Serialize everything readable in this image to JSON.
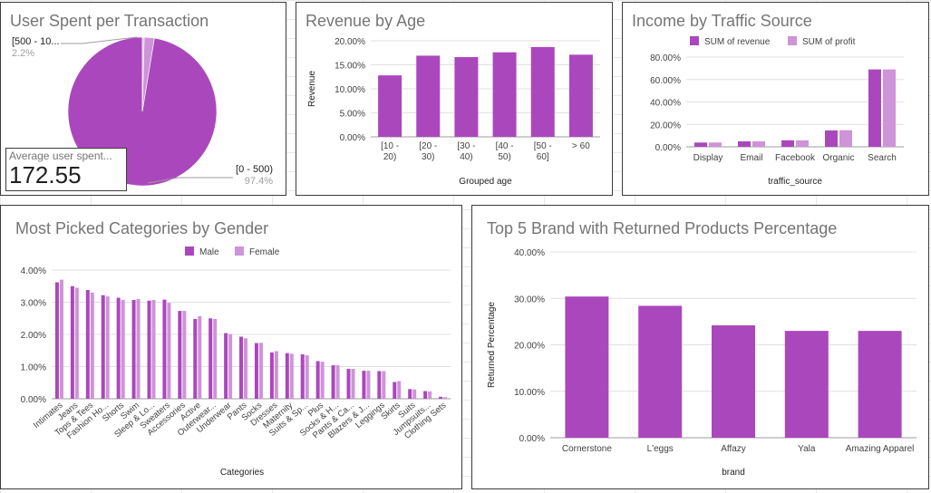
{
  "palette": {
    "primary": "#ab47bc",
    "secondary": "#ce93d8",
    "grid": "#e0e0e0",
    "text": "#424242",
    "title": "#757575"
  },
  "panels": {
    "p1_title": "User Spent per Transaction",
    "p2_title": "Revenue by Age",
    "p3_title": "Income by Traffic Source",
    "p4_title": "Most Picked Categories by Gender",
    "p5_title": "Top 5 Brand with Returned Products Percentage"
  },
  "scorecard": {
    "label": "Average user spent...",
    "value": "172.55"
  },
  "chart_data": [
    {
      "type": "pie",
      "title": "User Spent per Transaction",
      "slices": [
        {
          "label": "[0 - 500)",
          "value": 97.4,
          "pct_label": "97.4%",
          "color": "#ab47bc"
        },
        {
          "label": "[500 - 10...",
          "value": 2.2,
          "pct_label": "2.2%",
          "color": "#ce93d8"
        },
        {
          "label": "",
          "value": 0.4,
          "pct_label": "",
          "color": "#e1bee7"
        }
      ]
    },
    {
      "type": "bar",
      "title": "Revenue by Age",
      "categories": [
        [
          "[10 -",
          "20)"
        ],
        [
          "[20 -",
          "30)"
        ],
        [
          "[30 -",
          "40)"
        ],
        [
          "[40 -",
          "50)"
        ],
        [
          "[50 -",
          "60]"
        ],
        [
          "> 60"
        ]
      ],
      "values": [
        12.8,
        16.9,
        16.6,
        17.6,
        18.7,
        17.1
      ],
      "ylim": [
        0,
        20
      ],
      "yticks": [
        "0.00%",
        "5.00%",
        "10.00%",
        "15.00%",
        "20.00%"
      ],
      "xlabel": "Grouped age",
      "ylabel": "Revenue",
      "grid": true
    },
    {
      "type": "bar",
      "title": "Income by Traffic Source",
      "categories": [
        "Display",
        "Email",
        "Facebook",
        "Organic",
        "Search"
      ],
      "series": [
        {
          "name": "SUM of revenue",
          "values": [
            3.8,
            4.9,
            5.8,
            14.6,
            69.0
          ]
        },
        {
          "name": "SUM of profit",
          "values": [
            3.8,
            4.9,
            5.8,
            14.8,
            69.0
          ]
        }
      ],
      "ylim": [
        0,
        80
      ],
      "yticks": [
        "0.00%",
        "20.00%",
        "40.00%",
        "60.00%",
        "80.00%"
      ],
      "xlabel": "traffic_source",
      "legend": "top",
      "grid": true
    },
    {
      "type": "bar",
      "title": "Most Picked Categories by Gender",
      "categories": [
        "Intimates",
        "Jeans",
        "Tops & Tees",
        "Fashion Ho...",
        "Shorts",
        "Swim",
        "Sleep & Lo...",
        "Sweaters",
        "Accessories",
        "Active",
        "Outerwear...",
        "Underwear",
        "Pants",
        "Socks",
        "Dresses",
        "Maternity",
        "Suits & Sp...",
        "Plus",
        "Socks & H...",
        "Pants & Ca...",
        "Blazers & J...",
        "Leggings",
        "Skirts",
        "Suits",
        "Jumpsuits...",
        "Clothing Sets"
      ],
      "series": [
        {
          "name": "Male",
          "values": [
            3.62,
            3.5,
            3.38,
            3.22,
            3.14,
            3.07,
            3.05,
            3.08,
            2.73,
            2.48,
            2.5,
            2.04,
            1.93,
            1.73,
            1.44,
            1.42,
            1.38,
            1.17,
            1.04,
            0.93,
            0.87,
            0.86,
            0.52,
            0.3,
            0.24,
            0.06
          ]
        },
        {
          "name": "Female",
          "values": [
            3.7,
            3.45,
            3.3,
            3.18,
            3.07,
            3.1,
            3.07,
            2.98,
            2.73,
            2.57,
            2.48,
            2.01,
            1.88,
            1.74,
            1.48,
            1.4,
            1.35,
            1.15,
            1.04,
            0.93,
            0.87,
            0.86,
            0.55,
            0.29,
            0.23,
            0.05
          ]
        }
      ],
      "ylim": [
        0,
        4
      ],
      "yticks": [
        "0.00%",
        "1.00%",
        "2.00%",
        "3.00%",
        "4.00%"
      ],
      "xlabel": "Categories",
      "legend": "top",
      "grid": true
    },
    {
      "type": "bar",
      "title": "Top 5 Brand with Returned Products Percentage",
      "categories": [
        "Cornerstone",
        "L'eggs",
        "Affazy",
        "Yala",
        "Amazing Apparel"
      ],
      "values": [
        30.4,
        28.4,
        24.2,
        23.0,
        23.0
      ],
      "ylim": [
        0,
        40
      ],
      "yticks": [
        "0.00%",
        "10.00%",
        "20.00%",
        "30.00%",
        "40.00%"
      ],
      "xlabel": "brand",
      "ylabel": "Returned Percentage",
      "grid": true
    }
  ]
}
